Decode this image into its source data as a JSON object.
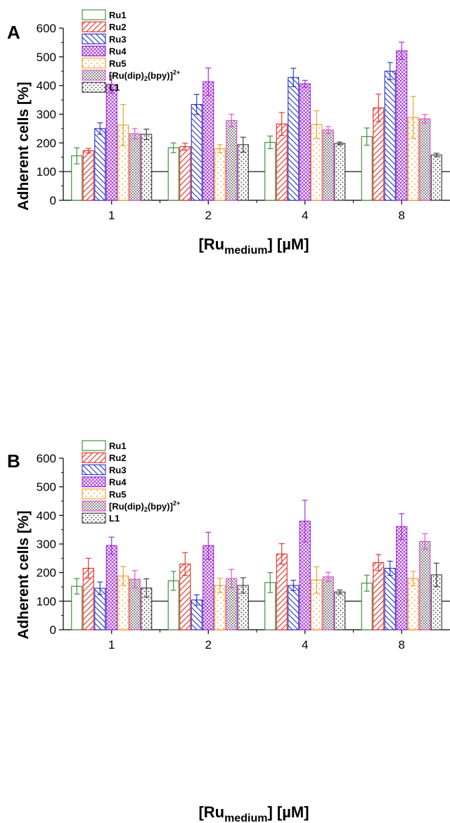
{
  "chart_data": [
    {
      "panel_label": "A",
      "type": "bar",
      "xlabel": {
        "main": "[Ru",
        "sub": "medium",
        "tail": "] [µM]"
      },
      "ylabel": "Adherent cells [%]",
      "ylim": [
        0,
        600
      ],
      "yticks": [
        "0",
        "100",
        "200",
        "300",
        "400",
        "500",
        "600"
      ],
      "categories": [
        "1",
        "2",
        "4",
        "8"
      ],
      "reference_line": 100,
      "legend_position": "top-left",
      "series": [
        {
          "name": "Ru1",
          "color": "#2e8b2e",
          "pattern": "none",
          "values": [
            155,
            183,
            202,
            222
          ],
          "errors": [
            28,
            17,
            22,
            30
          ]
        },
        {
          "name": "Ru2",
          "color": "#e8271e",
          "pattern": "diag-right",
          "values": [
            173,
            187,
            266,
            322
          ],
          "errors": [
            8,
            12,
            40,
            48
          ]
        },
        {
          "name": "Ru3",
          "color": "#1f2fc8",
          "pattern": "diag-left",
          "values": [
            250,
            334,
            428,
            450
          ],
          "errors": [
            20,
            35,
            32,
            30
          ]
        },
        {
          "name": "Ru4",
          "color": "#9b1fd6",
          "pattern": "crosshatch",
          "values": [
            404,
            413,
            406,
            521
          ],
          "errors": [
            30,
            48,
            12,
            30
          ]
        },
        {
          "name": "Ru5",
          "color": "#ee9a1c",
          "pattern": "sparse-dots",
          "values": [
            262,
            180,
            264,
            289
          ],
          "errors": [
            72,
            14,
            48,
            73
          ]
        },
        {
          "name_parts": [
            "[Ru(dip)",
            "2",
            "(bpy)]",
            "2+"
          ],
          "color": "#e844d8",
          "pattern": "checker",
          "values": [
            232,
            278,
            245,
            284
          ],
          "errors": [
            18,
            22,
            12,
            15
          ]
        },
        {
          "name": "L1",
          "color": "#333333",
          "pattern": "dots",
          "values": [
            230,
            194,
            198,
            158
          ],
          "errors": [
            18,
            26,
            5,
            6
          ]
        }
      ]
    },
    {
      "panel_label": "B",
      "type": "bar",
      "xlabel": {
        "main": "[Ru",
        "sub": "medium",
        "tail": "] [µM]"
      },
      "ylabel": "Adherent cells [%]",
      "ylim": [
        0,
        600
      ],
      "yticks": [
        "0",
        "100",
        "200",
        "300",
        "400",
        "500",
        "600"
      ],
      "categories": [
        "1",
        "2",
        "4",
        "8"
      ],
      "reference_line": 100,
      "legend_position": "top-left",
      "series": [
        {
          "name": "Ru1",
          "color": "#2e8b2e",
          "pattern": "none",
          "values": [
            152,
            171,
            165,
            163
          ],
          "errors": [
            27,
            33,
            35,
            28
          ]
        },
        {
          "name": "Ru2",
          "color": "#e8271e",
          "pattern": "diag-right",
          "values": [
            215,
            230,
            265,
            235
          ],
          "errors": [
            35,
            40,
            36,
            28
          ]
        },
        {
          "name": "Ru3",
          "color": "#1f2fc8",
          "pattern": "diag-left",
          "values": [
            145,
            104,
            155,
            215
          ],
          "errors": [
            22,
            18,
            18,
            25
          ]
        },
        {
          "name": "Ru4",
          "color": "#9b1fd6",
          "pattern": "crosshatch",
          "values": [
            294,
            294,
            380,
            361
          ],
          "errors": [
            30,
            47,
            73,
            45
          ]
        },
        {
          "name": "Ru5",
          "color": "#ee9a1c",
          "pattern": "sparse-dots",
          "values": [
            188,
            155,
            174,
            179
          ],
          "errors": [
            33,
            25,
            46,
            25
          ]
        },
        {
          "name_parts": [
            "[Ru(dip)",
            "2",
            "(bpy)]",
            "2+"
          ],
          "color": "#e844d8",
          "pattern": "checker",
          "values": [
            177,
            179,
            185,
            309
          ],
          "errors": [
            30,
            32,
            16,
            27
          ]
        },
        {
          "name": "L1",
          "color": "#333333",
          "pattern": "dots",
          "values": [
            146,
            155,
            132,
            192
          ],
          "errors": [
            32,
            27,
            7,
            41
          ]
        }
      ]
    }
  ]
}
